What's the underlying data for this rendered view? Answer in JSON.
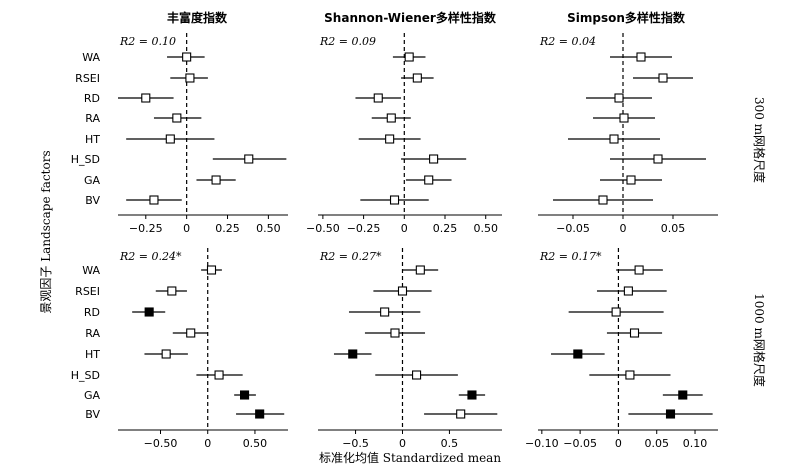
{
  "figure": {
    "xlabel": "标准化均值 Standardized mean",
    "ylabel": "景观因子 Landscape factors",
    "row_labels": [
      "300 m网格尺度",
      "1000 m网格尺度"
    ],
    "column_titles": [
      "丰富度指数",
      "Shannon-Wiener多样性指数",
      "Simpson多样性指数"
    ]
  },
  "chart_data": [
    {
      "type": "scatter",
      "title": "丰富度指数",
      "row": "300 m网格尺度",
      "annotation": "R2 = 0.10",
      "categories": [
        "WA",
        "RSEI",
        "RD",
        "RA",
        "HT",
        "H_SD",
        "GA",
        "BV"
      ],
      "values": [
        0.0,
        0.02,
        -0.25,
        -0.06,
        -0.1,
        0.38,
        0.18,
        -0.2
      ],
      "ci_low": [
        -0.12,
        -0.1,
        -0.42,
        -0.2,
        -0.37,
        0.16,
        0.06,
        -0.37
      ],
      "ci_high": [
        0.11,
        0.13,
        -0.08,
        0.09,
        0.17,
        0.61,
        0.3,
        -0.03
      ],
      "significant": [
        false,
        false,
        false,
        false,
        false,
        false,
        false,
        false
      ],
      "xlim": [
        -0.42,
        0.62
      ],
      "xticks": [
        -0.25,
        0,
        0.25,
        0.5
      ],
      "xtick_labels": [
        "−0.25",
        "0",
        "0.25",
        "0.50"
      ]
    },
    {
      "type": "scatter",
      "title": "Shannon-Wiener多样性指数",
      "row": "300 m网格尺度",
      "annotation": "R2 = 0.09",
      "categories": [
        "WA",
        "RSEI",
        "RD",
        "RA",
        "HT",
        "H_SD",
        "GA",
        "BV"
      ],
      "values": [
        0.03,
        0.08,
        -0.16,
        -0.08,
        -0.09,
        0.18,
        0.15,
        -0.06
      ],
      "ci_low": [
        -0.07,
        -0.02,
        -0.3,
        -0.2,
        -0.28,
        -0.02,
        0.01,
        -0.27
      ],
      "ci_high": [
        0.13,
        0.18,
        -0.02,
        0.04,
        0.1,
        0.38,
        0.29,
        0.15
      ],
      "significant": [
        false,
        false,
        false,
        false,
        false,
        false,
        false,
        false
      ],
      "xlim": [
        -0.53,
        0.6
      ],
      "xticks": [
        -0.5,
        -0.25,
        0,
        0.25,
        0.5
      ],
      "xtick_labels": [
        "−0.50",
        "−0.25",
        "0",
        "0.25",
        "0.50"
      ]
    },
    {
      "type": "scatter",
      "title": "Simpson多样性指数",
      "row": "300 m网格尺度",
      "annotation": "R2 = 0.04",
      "categories": [
        "WA",
        "RSEI",
        "RD",
        "RA",
        "HT",
        "H_SD",
        "GA",
        "BV"
      ],
      "values": [
        0.018,
        0.04,
        -0.004,
        0.001,
        -0.009,
        0.035,
        0.008,
        -0.02
      ],
      "ci_low": [
        -0.013,
        0.01,
        -0.037,
        -0.03,
        -0.055,
        -0.013,
        -0.023,
        -0.07
      ],
      "ci_high": [
        0.049,
        0.07,
        0.029,
        0.032,
        0.037,
        0.083,
        0.039,
        0.03
      ],
      "significant": [
        false,
        false,
        false,
        false,
        false,
        false,
        false,
        false
      ],
      "xlim": [
        -0.085,
        0.095
      ],
      "xticks": [
        -0.05,
        0,
        0.05
      ],
      "xtick_labels": [
        "−0.05",
        "0",
        "0.05"
      ]
    },
    {
      "type": "scatter",
      "title": "丰富度指数",
      "row": "1000 m网格尺度",
      "annotation": "R2 = 0.24*",
      "categories": [
        "WA",
        "RSEI",
        "RD",
        "RA",
        "HT",
        "H_SD",
        "GA",
        "BV"
      ],
      "values": [
        0.04,
        -0.38,
        -0.62,
        -0.18,
        -0.44,
        0.12,
        0.39,
        0.55
      ],
      "ci_low": [
        -0.07,
        -0.55,
        -0.8,
        -0.37,
        -0.67,
        -0.12,
        0.28,
        0.3
      ],
      "ci_high": [
        0.15,
        -0.22,
        -0.45,
        0.0,
        -0.21,
        0.37,
        0.51,
        0.81
      ],
      "significant": [
        false,
        false,
        true,
        false,
        false,
        false,
        true,
        true
      ],
      "xlim": [
        -0.95,
        0.85
      ],
      "xticks": [
        -0.5,
        0,
        0.5
      ],
      "xtick_labels": [
        "−0.50",
        "0",
        "0.50"
      ]
    },
    {
      "type": "scatter",
      "title": "Shannon-Wiener多样性指数",
      "row": "1000 m网格尺度",
      "annotation": "R2 = 0.27*",
      "categories": [
        "WA",
        "RSEI",
        "RD",
        "RA",
        "HT",
        "H_SD",
        "GA",
        "BV"
      ],
      "values": [
        0.19,
        0.0,
        -0.19,
        -0.08,
        -0.53,
        0.15,
        0.74,
        0.62
      ],
      "ci_low": [
        0.0,
        -0.31,
        -0.57,
        -0.4,
        -0.73,
        -0.29,
        0.6,
        0.23
      ],
      "ci_high": [
        0.38,
        0.31,
        0.19,
        0.24,
        -0.33,
        0.59,
        0.88,
        1.01
      ],
      "significant": [
        false,
        false,
        false,
        false,
        true,
        false,
        true,
        false
      ],
      "xlim": [
        -0.9,
        1.06
      ],
      "xticks": [
        -0.5,
        0,
        0.5
      ],
      "xtick_labels": [
        "−0.5",
        "0",
        "0.5"
      ]
    },
    {
      "type": "scatter",
      "title": "Simpson多样性指数",
      "row": "1000 m网格尺度",
      "annotation": "R2 = 0.17*",
      "categories": [
        "WA",
        "RSEI",
        "RD",
        "RA",
        "HT",
        "H_SD",
        "GA",
        "BV"
      ],
      "values": [
        0.027,
        0.013,
        -0.003,
        0.021,
        -0.053,
        0.015,
        0.084,
        0.068
      ],
      "ci_low": [
        -0.003,
        -0.028,
        -0.065,
        -0.015,
        -0.088,
        -0.038,
        0.058,
        0.013
      ],
      "ci_high": [
        0.058,
        0.063,
        0.059,
        0.057,
        -0.018,
        0.068,
        0.11,
        0.123
      ],
      "significant": [
        false,
        false,
        false,
        false,
        true,
        false,
        true,
        true
      ],
      "xlim": [
        -0.105,
        0.13
      ],
      "xticks": [
        -0.1,
        -0.05,
        0,
        0.05,
        0.1
      ],
      "xtick_labels": [
        "−0.10",
        "−0.05",
        "0",
        "0.05",
        "0.10"
      ]
    }
  ]
}
